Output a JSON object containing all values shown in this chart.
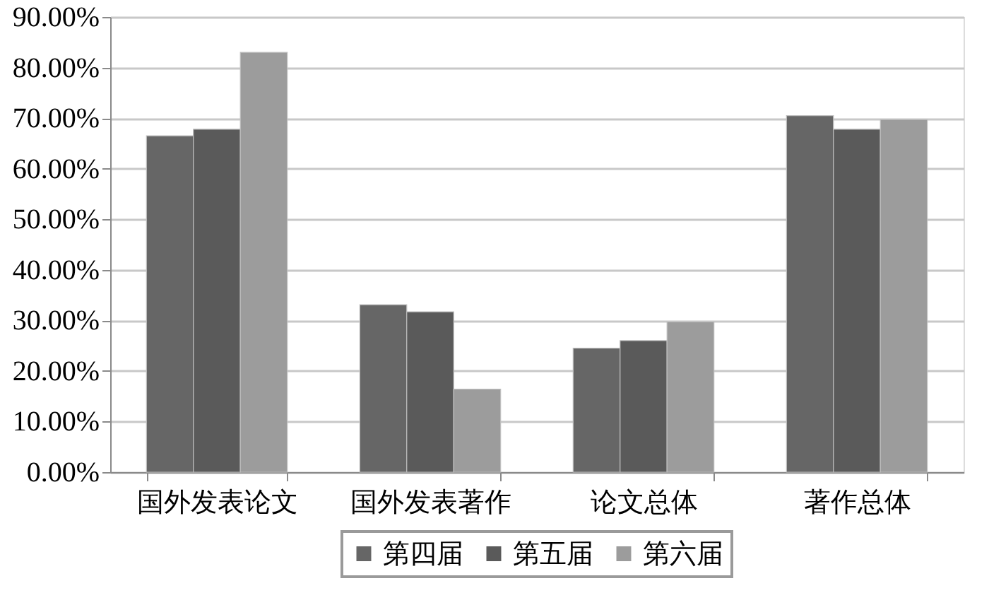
{
  "chart_data": {
    "type": "bar",
    "categories": [
      "国外发表论文",
      "国外发表著作",
      "论文总体",
      "著作总体"
    ],
    "series": [
      {
        "name": "第四届",
        "color": "#666666",
        "values": [
          66.5,
          33.1,
          24.5,
          70.5
        ]
      },
      {
        "name": "第五届",
        "color": "#5a5a5a",
        "values": [
          67.8,
          31.7,
          26.0,
          67.8
        ]
      },
      {
        "name": "第六届",
        "color": "#9c9c9c",
        "values": [
          83.0,
          16.4,
          29.7,
          69.7
        ]
      }
    ],
    "ylim": [
      0,
      90
    ],
    "yticks": [
      {
        "value": 0,
        "label": "0.00%"
      },
      {
        "value": 10,
        "label": "10.00%"
      },
      {
        "value": 20,
        "label": "20.00%"
      },
      {
        "value": 30,
        "label": "30.00%"
      },
      {
        "value": 40,
        "label": "40.00%"
      },
      {
        "value": 50,
        "label": "50.00%"
      },
      {
        "value": 60,
        "label": "60.00%"
      },
      {
        "value": 70,
        "label": "70.00%"
      },
      {
        "value": 80,
        "label": "80.00%"
      },
      {
        "value": 90,
        "label": "90.00%"
      }
    ],
    "grid": "y",
    "legend": "bottom"
  }
}
